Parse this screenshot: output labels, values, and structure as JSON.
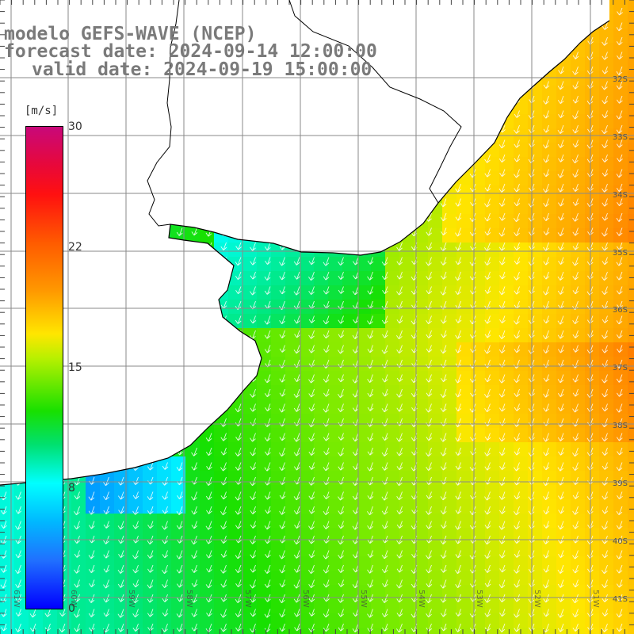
{
  "header": {
    "model": "modelo GEFS-WAVE (NCEP)",
    "forecast_date": "forecast date: 2024-09-14 12:00:00",
    "valid_date": "valid date: 2024-09-19 15:00:00"
  },
  "colorbar": {
    "unit": "[m/s]",
    "ticks": [
      "30",
      "22",
      "15",
      "8",
      "0"
    ],
    "tick_values": [
      30,
      22,
      15,
      8,
      0
    ],
    "range": [
      0,
      30
    ]
  },
  "map": {
    "lat_labels": [
      "32S",
      "33S",
      "34S",
      "35S",
      "36S",
      "37S",
      "38S",
      "39S",
      "40S",
      "41S"
    ],
    "lat_values": [
      -32,
      -33,
      -34,
      -35,
      -36,
      -37,
      -38,
      -39,
      -40,
      -41
    ],
    "lon_labels": [
      "61W",
      "60W",
      "59W",
      "58W",
      "57W",
      "56W",
      "55W",
      "54W",
      "53W",
      "52W",
      "51W"
    ],
    "lon_values": [
      -61,
      -60,
      -59,
      -58,
      -57,
      -56,
      -55,
      -54,
      -53,
      -52,
      -51
    ],
    "wind_direction": "north-northeast",
    "colors": {
      "land": "#ffffff",
      "grid": "#8a8a8a",
      "coast": "#000000",
      "arrows": "#ffffff"
    }
  }
}
